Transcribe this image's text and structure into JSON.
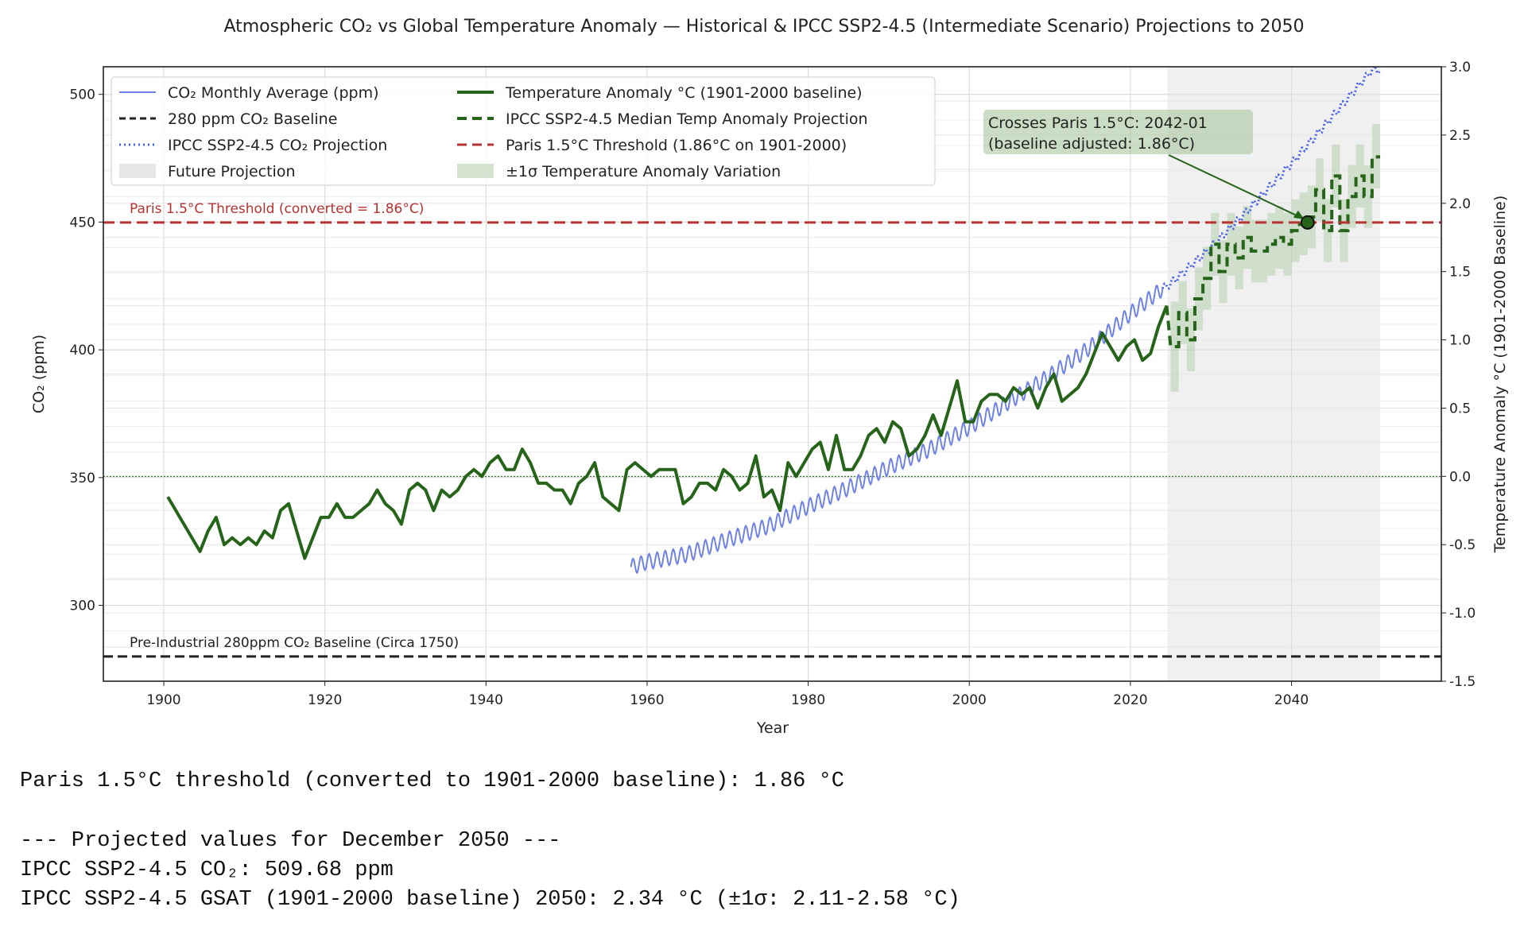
{
  "chart_data": {
    "type": "line",
    "title": "Atmospheric CO₂ vs Global Temperature Anomaly — Historical & IPCC SSP2-4.5 (Intermediate Scenario) Projections to 2050",
    "xlabel": "Year",
    "ylabel_left": "CO₂ (ppm)",
    "ylabel_right": "Temperature Anomaly °C (1901-2000 Baseline)",
    "xlim": [
      1892.5,
      2058.6
    ],
    "ylim_left": [
      270.3,
      510.8
    ],
    "ylim_right": [
      -1.5,
      3.0
    ],
    "xticks": [
      "1900",
      "1920",
      "1940",
      "1960",
      "1980",
      "2000",
      "2020",
      "2040"
    ],
    "yticks_left": [
      "300",
      "350",
      "400",
      "450",
      "500"
    ],
    "yticks_right": [
      "-1.5",
      "-1.0",
      "-0.5",
      "0.0",
      "0.5",
      "1.0",
      "1.5",
      "2.0",
      "2.5",
      "3.0"
    ],
    "grid": true,
    "legend_placement": "upper-left",
    "colors": {
      "co2": "#6f82e6",
      "co2_projection": "#4b63e8",
      "temperature": "#266419",
      "threshold": "#b83232",
      "baseline": "#222222",
      "band": "#a9c79f",
      "future_span": "#e6e6e6"
    },
    "legend": [
      {
        "label": "CO₂ Monthly Average (ppm)",
        "style": "co2"
      },
      {
        "label": "280 ppm CO₂ Baseline",
        "style": "baseline"
      },
      {
        "label": "IPCC SSP2-4.5 CO₂ Projection",
        "style": "co2proj"
      },
      {
        "label": "Future Projection",
        "style": "span"
      },
      {
        "label": "Temperature Anomaly °C (1901-2000 baseline)",
        "style": "temp"
      },
      {
        "label": "IPCC SSP2-4.5 Median Temp Anomaly Projection",
        "style": "tempproj"
      },
      {
        "label": "Paris 1.5°C Threshold (1.86°C on 1901-2000)",
        "style": "threshold"
      },
      {
        "label": "±1σ Temperature Anomaly Variation",
        "style": "band"
      }
    ],
    "co2_historical": {
      "years": [
        1958,
        1960,
        1965,
        1970,
        1975,
        1980,
        1985,
        1990,
        1995,
        2000,
        2005,
        2010,
        2015,
        2020,
        2024
      ],
      "ppm": [
        315.0,
        317.0,
        320.0,
        325.7,
        331.0,
        338.7,
        346.0,
        354.0,
        361.0,
        369.7,
        379.8,
        389.9,
        401.0,
        414.2,
        424.0
      ],
      "seasonal_amplitude_ppm": 3
    },
    "co2_projection": {
      "years": [
        2024,
        2025,
        2030,
        2035,
        2040,
        2045,
        2050
      ],
      "ppm": [
        424.0,
        426.0,
        440.0,
        456.0,
        473.0,
        491.0,
        509.68
      ]
    },
    "temperature_historical": {
      "start_year": 1900,
      "values": [
        -0.15,
        -0.25,
        -0.35,
        -0.45,
        -0.55,
        -0.4,
        -0.3,
        -0.5,
        -0.45,
        -0.5,
        -0.45,
        -0.5,
        -0.4,
        -0.45,
        -0.25,
        -0.2,
        -0.4,
        -0.6,
        -0.45,
        -0.3,
        -0.3,
        -0.2,
        -0.3,
        -0.3,
        -0.25,
        -0.2,
        -0.1,
        -0.2,
        -0.25,
        -0.35,
        -0.1,
        -0.05,
        -0.1,
        -0.25,
        -0.1,
        -0.15,
        -0.1,
        0.0,
        0.05,
        0.0,
        0.1,
        0.15,
        0.05,
        0.05,
        0.2,
        0.1,
        -0.05,
        -0.05,
        -0.1,
        -0.1,
        -0.2,
        -0.05,
        0.0,
        0.1,
        -0.15,
        -0.2,
        -0.25,
        0.05,
        0.1,
        0.05,
        0.0,
        0.05,
        0.05,
        0.05,
        -0.2,
        -0.15,
        -0.05,
        -0.05,
        -0.1,
        0.05,
        0.0,
        -0.1,
        -0.05,
        0.15,
        -0.15,
        -0.1,
        -0.25,
        0.1,
        0.0,
        0.1,
        0.2,
        0.25,
        0.05,
        0.3,
        0.05,
        0.05,
        0.15,
        0.3,
        0.35,
        0.25,
        0.4,
        0.35,
        0.15,
        0.2,
        0.3,
        0.45,
        0.3,
        0.5,
        0.7,
        0.4,
        0.4,
        0.55,
        0.6,
        0.6,
        0.55,
        0.65,
        0.6,
        0.65,
        0.5,
        0.65,
        0.75,
        0.55,
        0.6,
        0.65,
        0.75,
        0.9,
        1.05,
        0.95,
        0.85,
        0.95,
        1.0,
        0.85,
        0.9,
        1.1,
        1.25
      ]
    },
    "temperature_projection": {
      "start_year": 2025,
      "median": [
        0.95,
        1.2,
        1.0,
        1.3,
        1.45,
        1.7,
        1.5,
        1.7,
        1.6,
        1.75,
        1.65,
        1.65,
        1.7,
        1.75,
        1.7,
        1.8,
        1.85,
        1.9,
        2.1,
        1.8,
        2.2,
        1.8,
        2.05,
        2.2,
        2.05,
        2.34
      ],
      "lower": [
        0.62,
        0.97,
        0.77,
        1.07,
        1.22,
        1.47,
        1.27,
        1.47,
        1.37,
        1.52,
        1.42,
        1.42,
        1.47,
        1.52,
        1.47,
        1.57,
        1.62,
        1.67,
        1.87,
        1.57,
        1.97,
        1.57,
        1.82,
        1.97,
        1.82,
        2.11
      ],
      "upper": [
        1.28,
        1.43,
        1.23,
        1.53,
        1.68,
        1.93,
        1.73,
        1.93,
        1.83,
        1.98,
        1.88,
        1.88,
        1.93,
        1.98,
        1.93,
        2.03,
        2.08,
        2.13,
        2.33,
        2.03,
        2.43,
        2.03,
        2.28,
        2.43,
        2.28,
        2.58
      ]
    },
    "future_projection_span": [
      2024.6,
      2051.0
    ],
    "paris_threshold_c": 1.86,
    "preindustrial_baseline_ppm": 280,
    "zero_line_c": 0.0,
    "crossing": {
      "year": 2042.0,
      "value_c": 1.86
    },
    "annotations": {
      "crossing_line1": "Crosses Paris 1.5°C: 2042-01",
      "crossing_line2": "(baseline adjusted: 1.86°C)",
      "threshold_label": "Paris 1.5°C Threshold (converted = 1.86°C)",
      "baseline_label": "Pre-Industrial 280ppm CO₂ Baseline (Circa 1750)"
    }
  },
  "output": {
    "line1": "Paris 1.5°C threshold (converted to 1901-2000 baseline): 1.86 °C",
    "line2": "--- Projected values for December 2050 ---",
    "line3": "IPCC SSP2-4.5 CO₂: 509.68 ppm",
    "line4": "IPCC SSP2-4.5 GSAT (1901-2000 baseline) 2050: 2.34 °C (±1σ: 2.11-2.58 °C)"
  }
}
